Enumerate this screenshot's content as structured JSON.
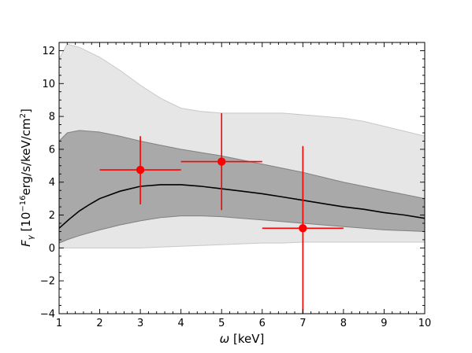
{
  "chart_data": {
    "type": "line",
    "xlabel_symbol": "ω",
    "xlabel_unit": " [keV]",
    "ylabel_symbol": "F",
    "ylabel_subscript": "γ",
    "ylabel_prefix": " [10",
    "ylabel_exponent": "−16",
    "ylabel_mid": "erg/s/keV/cm",
    "ylabel_sq": "2",
    "ylabel_suffix": "]",
    "xlim": [
      1,
      10
    ],
    "ylim": [
      -4,
      12.5
    ],
    "xticks": [
      1,
      2,
      3,
      4,
      5,
      6,
      7,
      8,
      9,
      10
    ],
    "yticks": [
      -4,
      -2,
      0,
      2,
      4,
      6,
      8,
      10,
      12
    ],
    "xtick_labels": [
      "1",
      "2",
      "3",
      "4",
      "5",
      "6",
      "7",
      "8",
      "9",
      "10"
    ],
    "ytick_labels": [
      "−4",
      "−2",
      "0",
      "2",
      "4",
      "6",
      "8",
      "10",
      "12"
    ],
    "grid": false,
    "colors": {
      "outer_band": "#e6e6e6",
      "outer_band_edge": "#c8c8c8",
      "inner_band": "#a9a9a9",
      "inner_band_edge": "#808080",
      "model_line": "#000000",
      "data_points": "#ff0000"
    },
    "outer_band": {
      "x": [
        1.0,
        1.2,
        1.5,
        2.0,
        2.5,
        3.0,
        3.5,
        4.0,
        4.5,
        5.0,
        5.5,
        6.0,
        6.5,
        7.0,
        7.5,
        8.0,
        8.5,
        9.0,
        9.5,
        10.0
      ],
      "upper": [
        11.5,
        12.4,
        12.2,
        11.6,
        10.8,
        9.9,
        9.1,
        8.5,
        8.3,
        8.2,
        8.2,
        8.2,
        8.2,
        8.1,
        8.0,
        7.9,
        7.7,
        7.4,
        7.1,
        6.8
      ],
      "lower": [
        0.0,
        0.0,
        0.0,
        0.0,
        0.0,
        0.0,
        0.05,
        0.1,
        0.15,
        0.2,
        0.25,
        0.3,
        0.3,
        0.35,
        0.35,
        0.35,
        0.35,
        0.35,
        0.35,
        0.35
      ]
    },
    "inner_band": {
      "x": [
        1.0,
        1.2,
        1.5,
        2.0,
        2.5,
        3.0,
        3.5,
        4.0,
        4.5,
        5.0,
        5.5,
        6.0,
        6.5,
        7.0,
        7.5,
        8.0,
        8.5,
        9.0,
        9.5,
        10.0
      ],
      "upper": [
        6.5,
        7.0,
        7.15,
        7.05,
        6.8,
        6.5,
        6.25,
        6.0,
        5.8,
        5.6,
        5.35,
        5.1,
        4.85,
        4.6,
        4.3,
        4.0,
        3.75,
        3.5,
        3.25,
        3.0
      ],
      "lower": [
        0.3,
        0.5,
        0.75,
        1.1,
        1.4,
        1.65,
        1.85,
        1.95,
        1.95,
        1.9,
        1.8,
        1.7,
        1.6,
        1.5,
        1.4,
        1.3,
        1.2,
        1.1,
        1.05,
        1.0
      ]
    },
    "model_line": {
      "x": [
        1.0,
        1.25,
        1.5,
        1.75,
        2.0,
        2.5,
        3.0,
        3.5,
        4.0,
        4.5,
        5.0,
        5.5,
        6.0,
        6.5,
        7.0,
        7.5,
        8.0,
        8.5,
        9.0,
        9.5,
        10.0
      ],
      "y": [
        1.2,
        1.75,
        2.25,
        2.65,
        3.0,
        3.45,
        3.75,
        3.85,
        3.85,
        3.75,
        3.6,
        3.45,
        3.3,
        3.1,
        2.9,
        2.7,
        2.5,
        2.35,
        2.15,
        2.0,
        1.8
      ]
    },
    "data_points": [
      {
        "x": 3,
        "y": 4.75,
        "xerr": 1,
        "yerr_low": 2.1,
        "yerr_high": 2.05
      },
      {
        "x": 5,
        "y": 5.25,
        "xerr": 1,
        "yerr_low": 2.95,
        "yerr_high": 2.95
      },
      {
        "x": 7,
        "y": 1.2,
        "xerr": 1,
        "yerr_low": 5.2,
        "yerr_high": 5.0
      }
    ]
  }
}
